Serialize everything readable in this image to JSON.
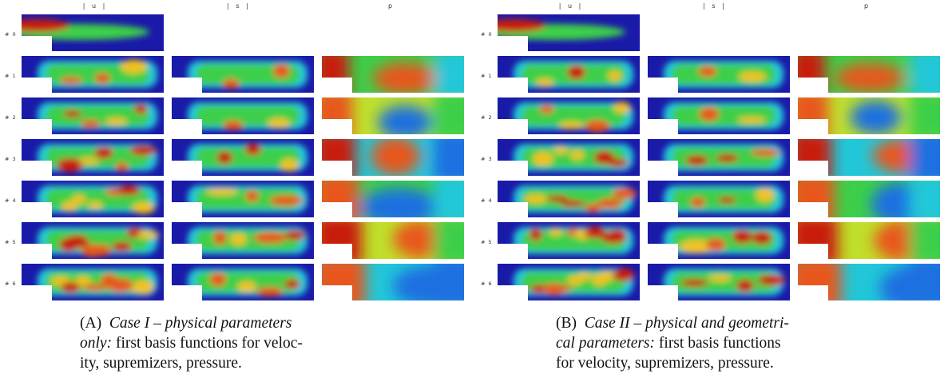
{
  "panels": [
    {
      "column_headers": [
        "| u |",
        "| s |",
        "p"
      ],
      "row_labels": [
        "# 0",
        "# 1",
        "# 2",
        "# 3",
        "# 4",
        "# 5",
        "# 6"
      ],
      "caption": {
        "tag": "(A)",
        "title": "Case I – physical parameters only:",
        "line1_plain": "",
        "text_lines": [
          "(A)  Case I – physical parameters",
          "only: first basis functions for veloc-",
          "ity, supremizers, pressure."
        ]
      }
    },
    {
      "column_headers": [
        "| u |",
        "| s |",
        "p"
      ],
      "row_labels": [
        "# 0",
        "# 1",
        "# 2",
        "# 3",
        "# 4",
        "# 5",
        "# 6"
      ],
      "caption": {
        "tag": "(B)",
        "title": "Case II – physical and geometri-",
        "text_lines": [
          "(B)  Case II – physical and geometri-",
          "cal parameters: first basis functions",
          "for velocity, supremizers, pressure."
        ]
      }
    }
  ],
  "captions": {
    "a": {
      "l1_tag": "(A)",
      "l1_it": "Case I – physical parameters",
      "l2_it": "only:",
      "l2_rest": " first basis functions for veloc-",
      "l3": "ity, supremizers, pressure."
    },
    "b": {
      "l1_tag": "(B)",
      "l1_it": "Case II – physical and geometri-",
      "l2_it": "cal parameters:",
      "l2_rest": " first basis functions",
      "l3": "for velocity, supremizers, pressure."
    }
  },
  "colormap": [
    "#1a1aa8",
    "#1e6fe0",
    "#21c7d8",
    "#3ccf4a",
    "#bfe02a",
    "#f1c21b",
    "#e8561a",
    "#c81e10"
  ]
}
